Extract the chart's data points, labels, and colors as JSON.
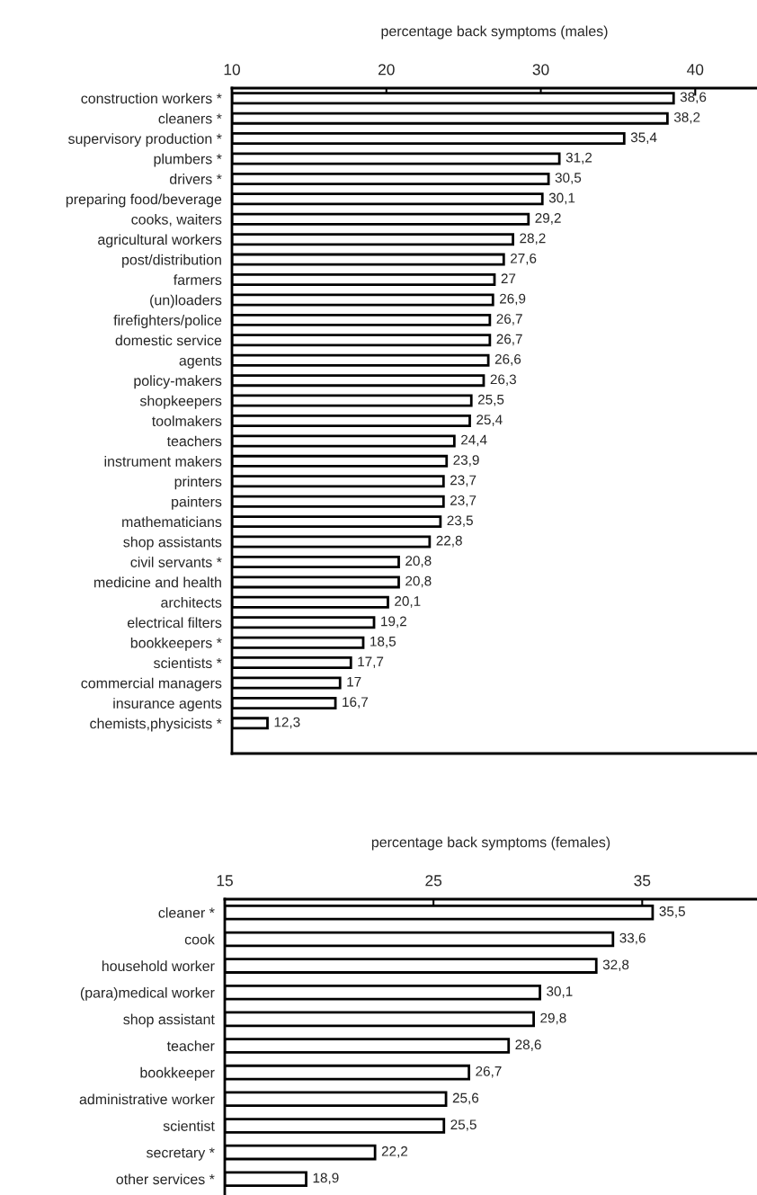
{
  "chart_data": [
    {
      "type": "bar",
      "orientation": "horizontal",
      "xlabel": "percentage back symptoms (males)",
      "categories": [
        "construction workers *",
        "cleaners *",
        "supervisory production *",
        "plumbers *",
        "drivers *",
        "preparing food/beverage",
        "cooks, waiters",
        "agricultural workers",
        "post/distribution",
        "farmers",
        "(un)loaders",
        "firefighters/police",
        "domestic service",
        "agents",
        "policy-makers",
        "shopkeepers",
        "toolmakers",
        "teachers",
        "instrument makers",
        "printers",
        "painters",
        "mathematicians",
        "shop assistants",
        "civil servants *",
        "medicine and health",
        "architects",
        "electrical filters",
        "bookkeepers *",
        "scientists *",
        "commercial managers",
        "insurance agents",
        "chemists,physicists *",
        null
      ],
      "values": [
        38.6,
        38.2,
        35.4,
        31.2,
        30.5,
        30.1,
        29.2,
        28.2,
        27.6,
        27,
        26.9,
        26.7,
        26.7,
        26.6,
        26.3,
        25.5,
        25.4,
        24.4,
        23.9,
        23.7,
        23.7,
        23.5,
        22.8,
        20.8,
        20.8,
        20.1,
        19.2,
        18.5,
        17.7,
        17,
        16.7,
        12.3,
        null
      ],
      "value_labels": [
        "38,6",
        "38,2",
        "35,4",
        "31,2",
        "30,5",
        "30,1",
        "29,2",
        "28,2",
        "27,6",
        "27",
        "26,9",
        "26,7",
        "26,7",
        "26,6",
        "26,3",
        "25,5",
        "25,4",
        "24,4",
        "23,9",
        "23,7",
        "23,7",
        "23,5",
        "22,8",
        "20,8",
        "20,8",
        "20,1",
        "19,2",
        "18,5",
        "17,7",
        "17",
        "16,7",
        "12,3",
        null
      ],
      "color": "#ffffff",
      "xlim": [
        10,
        44
      ],
      "xticks": [
        10,
        20,
        30,
        40
      ],
      "grid": false,
      "legend": false
    },
    {
      "type": "bar",
      "orientation": "horizontal",
      "xlabel": "percentage back symptoms (females)",
      "categories": [
        "cleaner *",
        "cook",
        "household worker",
        "(para)medical worker",
        "shop assistant",
        "teacher",
        "bookkeeper",
        "administrative worker",
        "scientist",
        "secretary *",
        "other services *"
      ],
      "values": [
        35.5,
        33.6,
        32.8,
        30.1,
        29.8,
        28.6,
        26.7,
        25.6,
        25.5,
        22.2,
        18.9
      ],
      "value_labels": [
        "35,5",
        "33,6",
        "32,8",
        "30,1",
        "29,8",
        "28,6",
        "26,7",
        "25,6",
        "25,5",
        "22,2",
        "18,9"
      ],
      "color": "#ffffff",
      "xlim": [
        15,
        40.5
      ],
      "xticks": [
        15,
        25,
        35
      ],
      "grid": false,
      "legend": false
    }
  ]
}
